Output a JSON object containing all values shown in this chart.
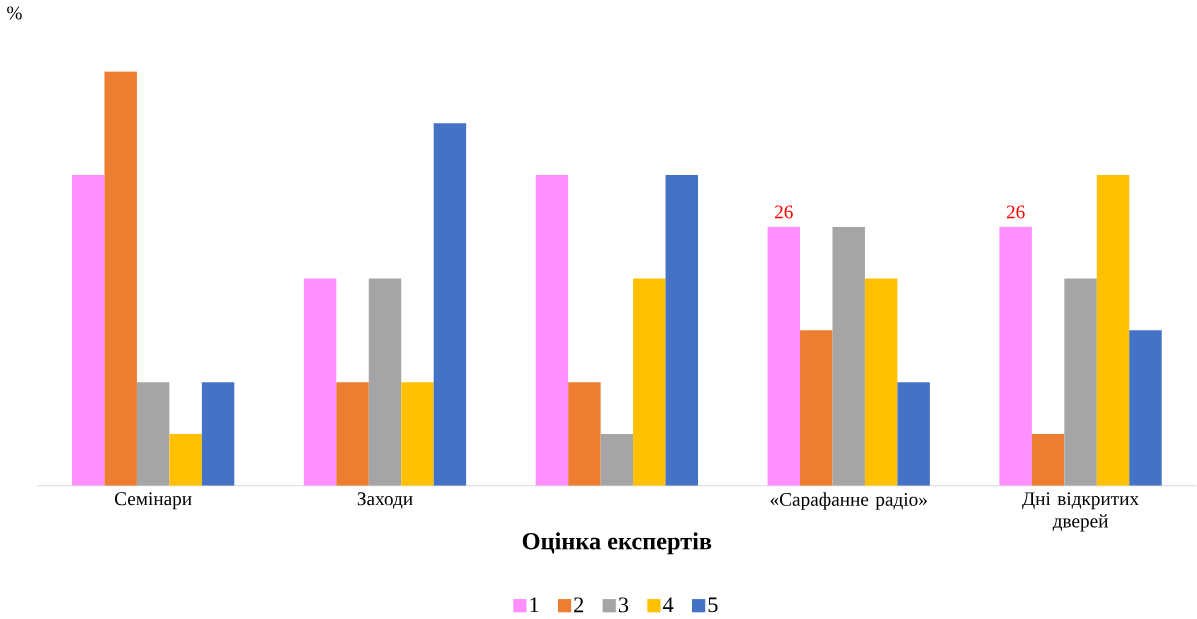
{
  "chart_data": {
    "type": "bar",
    "ylabel": "%",
    "xlabel": "Оцінка експертів",
    "categories": [
      "Семінари",
      "Заходи",
      null,
      "«Сарафанне радіо»",
      "Дні відкритих дверей"
    ],
    "legend": "bottom",
    "series": [
      {
        "name": "1",
        "color": "#ff8fff",
        "values": [
          31.2,
          20.8,
          31.2,
          26,
          26
        ],
        "value_labels": [
          null,
          null,
          null,
          "26",
          "26"
        ]
      },
      {
        "name": "2",
        "color": "#ed7d31",
        "values": [
          41.6,
          10.4,
          10.4,
          15.6,
          5.2
        ]
      },
      {
        "name": "3",
        "color": "#a5a5a5",
        "values": [
          10.4,
          20.8,
          5.2,
          26,
          20.8
        ]
      },
      {
        "name": "4",
        "color": "#ffc000",
        "values": [
          5.2,
          10.4,
          20.8,
          20.8,
          31.2
        ]
      },
      {
        "name": "5",
        "color": "#4472c4",
        "values": [
          10.4,
          36.4,
          31.2,
          10.4,
          15.6
        ]
      }
    ]
  }
}
